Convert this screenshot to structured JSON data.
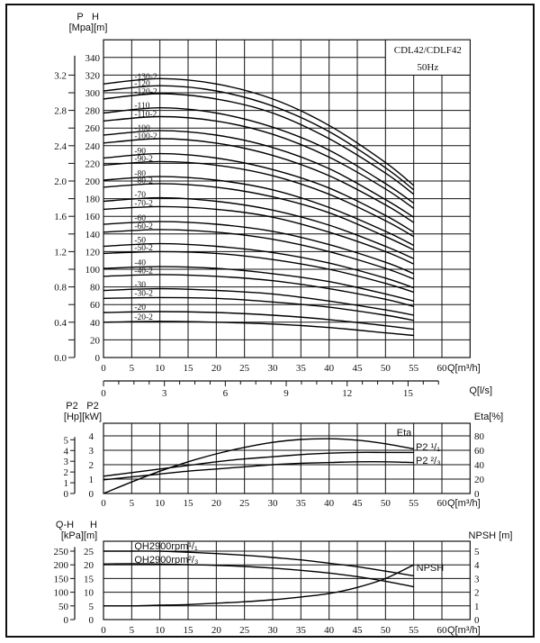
{
  "chart_data": [
    {
      "type": "line",
      "title": "CDL42/CDLF42",
      "subtitle": "50Hz",
      "header_left": [
        "P",
        "H"
      ],
      "header_units": "[Mpa][m]",
      "xlabel": "Q[m³/h]",
      "x_ticks": [
        0,
        5,
        10,
        15,
        20,
        25,
        30,
        35,
        40,
        45,
        50,
        55,
        60
      ],
      "x2label": "Q[l/s]",
      "x2_ticks": [
        0,
        3,
        6,
        9,
        12,
        15
      ],
      "y_ticks": [
        0,
        20,
        40,
        60,
        80,
        100,
        120,
        140,
        160,
        180,
        200,
        220,
        240,
        260,
        280,
        300,
        320,
        340
      ],
      "y2_ticks": [
        "0.0",
        "0.4",
        "0.8",
        "1.2",
        "1.6",
        "2.0",
        "2.4",
        "2.8",
        "3.2"
      ],
      "xlim": [
        0,
        65
      ],
      "ylim": [
        0,
        360
      ],
      "grid": true,
      "x": [
        0,
        10,
        20,
        30,
        40,
        50,
        55
      ],
      "series": [
        {
          "name": "-130-2",
          "values": [
            310,
            316,
            310,
            293,
            263,
            221,
            195
          ]
        },
        {
          "name": "-120",
          "values": [
            302,
            308,
            302,
            285,
            256,
            215,
            190
          ]
        },
        {
          "name": "-120-2",
          "values": [
            293,
            299,
            293,
            277,
            248,
            209,
            185
          ]
        },
        {
          "name": "-110",
          "values": [
            277,
            283,
            277,
            261,
            235,
            197,
            175
          ]
        },
        {
          "name": "-110-2",
          "values": [
            268,
            273,
            268,
            253,
            227,
            191,
            169
          ]
        },
        {
          "name": "-100",
          "values": [
            252,
            257,
            252,
            238,
            214,
            179,
            159
          ]
        },
        {
          "name": "-100-2",
          "values": [
            243,
            248,
            243,
            229,
            206,
            173,
            153
          ]
        },
        {
          "name": "-90",
          "values": [
            226,
            231,
            226,
            213,
            192,
            161,
            142
          ]
        },
        {
          "name": "-90-2",
          "values": [
            218,
            222,
            218,
            206,
            185,
            155,
            137
          ]
        },
        {
          "name": "-80",
          "values": [
            201,
            205,
            201,
            190,
            170,
            143,
            127
          ]
        },
        {
          "name": "-80-2",
          "values": [
            193,
            197,
            193,
            182,
            164,
            137,
            122
          ]
        },
        {
          "name": "-70",
          "values": [
            177,
            181,
            177,
            167,
            150,
            126,
            112
          ]
        },
        {
          "name": "-70-2",
          "values": [
            168,
            171,
            168,
            159,
            142,
            120,
            106
          ]
        },
        {
          "name": "-60",
          "values": [
            151,
            154,
            151,
            143,
            128,
            108,
            95
          ]
        },
        {
          "name": "-60-2",
          "values": [
            142,
            145,
            142,
            134,
            120,
            101,
            89
          ]
        },
        {
          "name": "-50",
          "values": [
            126,
            129,
            126,
            119,
            107,
            90,
            79
          ]
        },
        {
          "name": "-50-2",
          "values": [
            118,
            120,
            118,
            111,
            100,
            84,
            74
          ]
        },
        {
          "name": "-40",
          "values": [
            101,
            103,
            101,
            95,
            86,
            72,
            64
          ]
        },
        {
          "name": "-40-2",
          "values": [
            92,
            94,
            92,
            87,
            78,
            66,
            58
          ]
        },
        {
          "name": "-30",
          "values": [
            76,
            78,
            76,
            72,
            64,
            54,
            48
          ]
        },
        {
          "name": "-30-2",
          "values": [
            67,
            68,
            67,
            63,
            57,
            48,
            42
          ]
        },
        {
          "name": "-20",
          "values": [
            51,
            52,
            51,
            48,
            43,
            36,
            32
          ]
        },
        {
          "name": "-20-2",
          "values": [
            40,
            41,
            40,
            38,
            34,
            28,
            25
          ]
        }
      ]
    },
    {
      "type": "line",
      "header_left": [
        "P2",
        "P2"
      ],
      "header_units": "[Hp][kW]",
      "header_right": "Eta[%]",
      "xlabel": "Q[m³/h]",
      "x_ticks": [
        0,
        5,
        10,
        15,
        20,
        25,
        30,
        35,
        40,
        45,
        50,
        55,
        60
      ],
      "y_ticks_kw": [
        0,
        1,
        2,
        3,
        4
      ],
      "y_ticks_hp": [
        0,
        1,
        2,
        3,
        4,
        5
      ],
      "y_ticks_eta": [
        0,
        20,
        40,
        60,
        80
      ],
      "xlim": [
        0,
        65
      ],
      "grid": true,
      "x": [
        0,
        5,
        10,
        15,
        20,
        25,
        30,
        35,
        40,
        45,
        50,
        55
      ],
      "series": [
        {
          "name": "Eta",
          "axis": "Eta[%]",
          "values": [
            0,
            16,
            31,
            44,
            55,
            64,
            71,
            75,
            76,
            74,
            69,
            62
          ]
        },
        {
          "name": "P2 ¹/₁",
          "axis": "kW",
          "values": [
            1.2,
            1.45,
            1.7,
            1.95,
            2.2,
            2.4,
            2.55,
            2.7,
            2.8,
            2.85,
            2.85,
            2.85
          ]
        },
        {
          "name": "P2 ²/₃",
          "axis": "kW",
          "values": [
            0.95,
            1.15,
            1.35,
            1.55,
            1.7,
            1.85,
            2.0,
            2.1,
            2.15,
            2.2,
            2.2,
            2.15
          ]
        }
      ]
    },
    {
      "type": "line",
      "header_left": [
        "Q-H",
        "H"
      ],
      "header_units": "[kPa][m]",
      "header_right": "NPSH [m]",
      "xlabel": "Q[m³/h]",
      "x_ticks": [
        0,
        5,
        10,
        15,
        20,
        25,
        30,
        35,
        40,
        45,
        50,
        55,
        60
      ],
      "y_ticks_m": [
        0,
        5,
        10,
        15,
        20,
        25
      ],
      "y_ticks_kpa": [
        0,
        50,
        100,
        150,
        200,
        250
      ],
      "y_ticks_npsh": [
        0,
        1,
        2,
        3,
        4,
        5
      ],
      "xlim": [
        0,
        65
      ],
      "grid": true,
      "x": [
        0,
        5,
        10,
        15,
        20,
        25,
        30,
        35,
        40,
        45,
        50,
        55
      ],
      "series": [
        {
          "name": "QH2900rpm¹/₁",
          "axis": "m",
          "values": [
            25,
            25,
            25,
            24.6,
            24.1,
            23.5,
            22.7,
            21.8,
            20.6,
            19.3,
            17.7,
            16
          ]
        },
        {
          "name": "QH2900rpm²/₃",
          "axis": "m",
          "values": [
            20.3,
            20.4,
            20.3,
            20.1,
            19.8,
            19.4,
            18.8,
            18,
            17,
            15.7,
            14,
            12
          ]
        },
        {
          "name": "NPSH",
          "axis": "NPSH [m]",
          "values": [
            1.0,
            1.0,
            1.05,
            1.1,
            1.2,
            1.3,
            1.45,
            1.65,
            1.9,
            2.35,
            3.0,
            4.0
          ]
        }
      ]
    }
  ],
  "colors": {
    "line": "#000000",
    "background": "#ffffff"
  }
}
